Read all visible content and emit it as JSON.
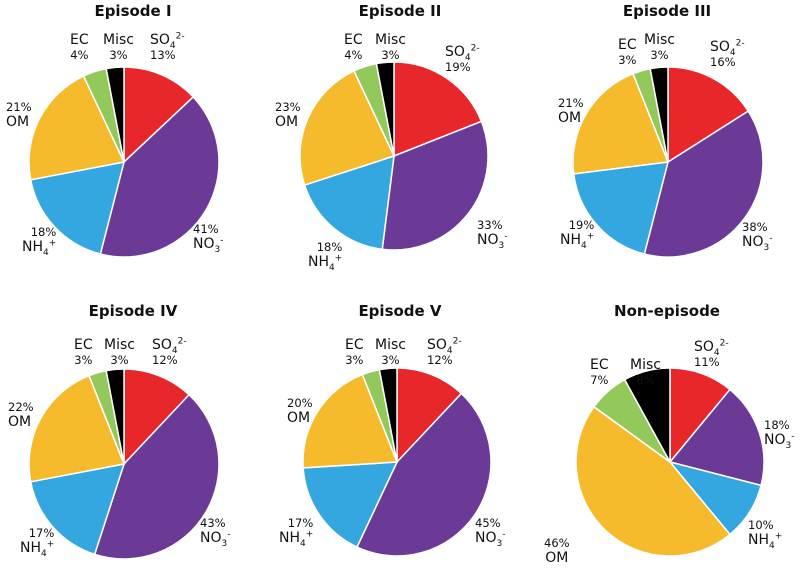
{
  "chart_data": [
    {
      "type": "pie",
      "title": "Episode I",
      "slices": [
        {
          "name": "SO4 2-",
          "value": 13,
          "label": "13%",
          "color": "#e8272a"
        },
        {
          "name": "NO3 -",
          "value": 41,
          "label": "41%",
          "color": "#6a3a96"
        },
        {
          "name": "NH4 +",
          "value": 18,
          "label": "18%",
          "color": "#35a7e0"
        },
        {
          "name": "OM",
          "value": 21,
          "label": "21%",
          "color": "#f6ba2d"
        },
        {
          "name": "EC",
          "value": 4,
          "label": "4%",
          "color": "#93c95b"
        },
        {
          "name": "Misc",
          "value": 3,
          "label": "3%",
          "color": "#000000"
        }
      ]
    },
    {
      "type": "pie",
      "title": "Episode II",
      "slices": [
        {
          "name": "SO4 2-",
          "value": 19,
          "label": "19%",
          "color": "#e8272a"
        },
        {
          "name": "NO3 -",
          "value": 33,
          "label": "33%",
          "color": "#6a3a96"
        },
        {
          "name": "NH4 +",
          "value": 18,
          "label": "18%",
          "color": "#35a7e0"
        },
        {
          "name": "OM",
          "value": 23,
          "label": "23%",
          "color": "#f6ba2d"
        },
        {
          "name": "EC",
          "value": 4,
          "label": "4%",
          "color": "#93c95b"
        },
        {
          "name": "Misc",
          "value": 3,
          "label": "3%",
          "color": "#000000"
        }
      ]
    },
    {
      "type": "pie",
      "title": "Episode III",
      "slices": [
        {
          "name": "SO4 2-",
          "value": 16,
          "label": "16%",
          "color": "#e8272a"
        },
        {
          "name": "NO3 -",
          "value": 38,
          "label": "38%",
          "color": "#6a3a96"
        },
        {
          "name": "NH4 +",
          "value": 19,
          "label": "19%",
          "color": "#35a7e0"
        },
        {
          "name": "OM",
          "value": 21,
          "label": "21%",
          "color": "#f6ba2d"
        },
        {
          "name": "EC",
          "value": 3,
          "label": "3%",
          "color": "#93c95b"
        },
        {
          "name": "Misc",
          "value": 3,
          "label": "3%",
          "color": "#000000"
        }
      ]
    },
    {
      "type": "pie",
      "title": "Episode IV",
      "slices": [
        {
          "name": "SO4 2-",
          "value": 12,
          "label": "12%",
          "color": "#e8272a"
        },
        {
          "name": "NO3 -",
          "value": 43,
          "label": "43%",
          "color": "#6a3a96"
        },
        {
          "name": "NH4 +",
          "value": 17,
          "label": "17%",
          "color": "#35a7e0"
        },
        {
          "name": "OM",
          "value": 22,
          "label": "22%",
          "color": "#f6ba2d"
        },
        {
          "name": "EC",
          "value": 3,
          "label": "3%",
          "color": "#93c95b"
        },
        {
          "name": "Misc",
          "value": 3,
          "label": "3%",
          "color": "#000000"
        }
      ]
    },
    {
      "type": "pie",
      "title": "Episode V",
      "slices": [
        {
          "name": "SO4 2-",
          "value": 12,
          "label": "12%",
          "color": "#e8272a"
        },
        {
          "name": "NO3 -",
          "value": 45,
          "label": "45%",
          "color": "#6a3a96"
        },
        {
          "name": "NH4 +",
          "value": 17,
          "label": "17%",
          "color": "#35a7e0"
        },
        {
          "name": "OM",
          "value": 20,
          "label": "20%",
          "color": "#f6ba2d"
        },
        {
          "name": "EC",
          "value": 3,
          "label": "3%",
          "color": "#93c95b"
        },
        {
          "name": "Misc",
          "value": 3,
          "label": "3%",
          "color": "#000000"
        }
      ]
    },
    {
      "type": "pie",
      "title": "Non-episode",
      "slices": [
        {
          "name": "SO4 2-",
          "value": 11,
          "label": "11%",
          "color": "#e8272a"
        },
        {
          "name": "NO3 -",
          "value": 18,
          "label": "18%",
          "color": "#6a3a96"
        },
        {
          "name": "NH4 +",
          "value": 10,
          "label": "10%",
          "color": "#35a7e0"
        },
        {
          "name": "OM",
          "value": 46,
          "label": "46%",
          "color": "#f6ba2d"
        },
        {
          "name": "EC",
          "value": 7,
          "label": "7%",
          "color": "#93c95b"
        },
        {
          "name": "Misc",
          "value": 8,
          "label": "8%",
          "color": "#000000"
        }
      ]
    }
  ]
}
